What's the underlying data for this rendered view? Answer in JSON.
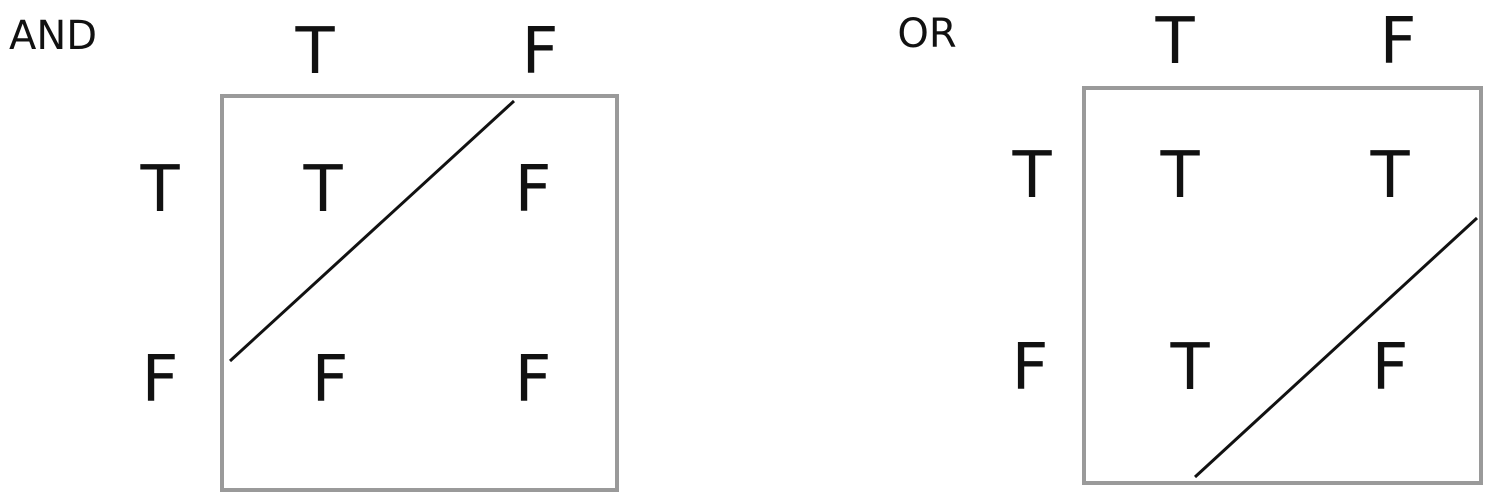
{
  "left_table": {
    "operator": "AND",
    "column_headers": [
      "T",
      "F"
    ],
    "row_headers": [
      "T",
      "F"
    ],
    "cells": [
      [
        "T",
        "F"
      ],
      [
        "F",
        "F"
      ]
    ]
  },
  "right_table": {
    "operator": "OR",
    "column_headers": [
      "T",
      "F"
    ],
    "row_headers": [
      "T",
      "F"
    ],
    "cells": [
      [
        "T",
        "T"
      ],
      [
        "T",
        "F"
      ]
    ]
  },
  "colors": {
    "box_border": "#9a9a9a",
    "text": "#111111",
    "divider": "#111111"
  }
}
